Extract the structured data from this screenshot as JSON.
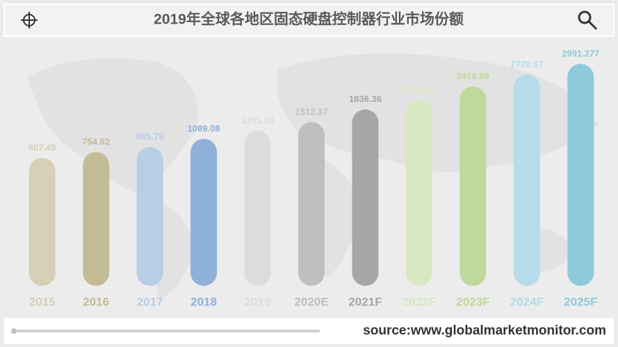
{
  "chart_data": {
    "type": "bar",
    "title": "2019年全球各地区固态硬盘控制器行业市场份额",
    "categories": [
      "2015",
      "2016",
      "2017",
      "2018",
      "2019",
      "2020E",
      "2021F",
      "2022F",
      "2023F",
      "2024F",
      "2025F"
    ],
    "values": [
      607.45,
      754.62,
      885.79,
      1089.08,
      1295.18,
      1512.37,
      1836.36,
      2064.41,
      2416.89,
      2720.07,
      2991.277
    ],
    "colors": [
      "#d6d0b8",
      "#c2bb95",
      "#b8cde6",
      "#8fb0d8",
      "#dcdcdc",
      "#bfbfbf",
      "#a6a6a6",
      "#d8e8c0",
      "#c0d89a",
      "#b5dce8",
      "#8ecadb"
    ],
    "source": "source:www.globalmarketmonitor.com"
  }
}
